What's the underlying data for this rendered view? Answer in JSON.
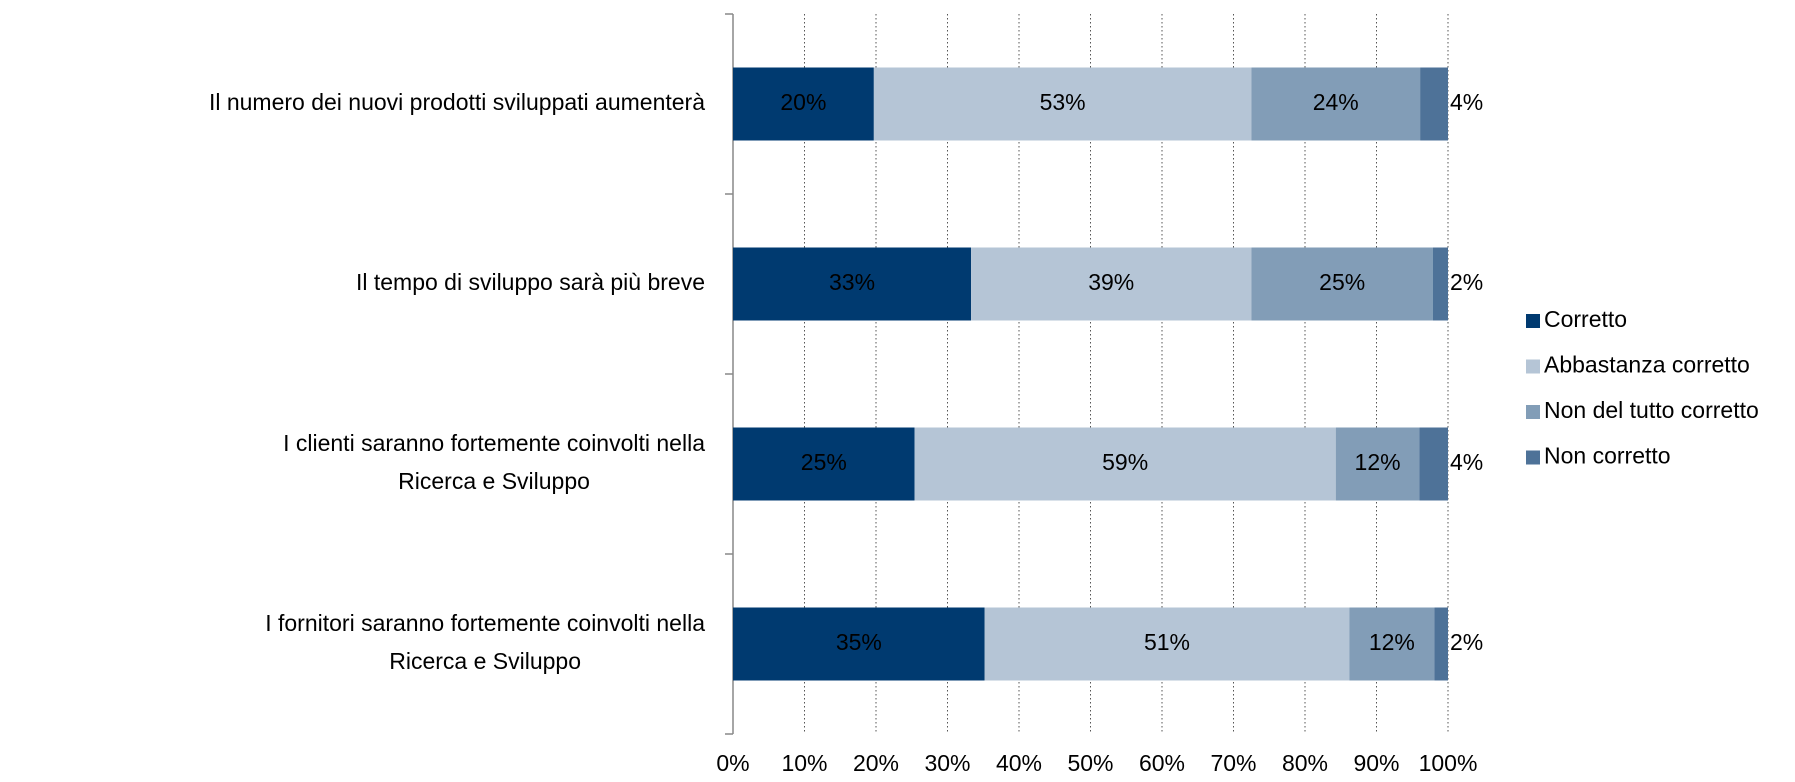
{
  "chart_data": {
    "type": "stacked_bar_horizontal",
    "categories": [
      "Il numero dei nuovi prodotti sviluppati aumenterà",
      "Il tempo di sviluppo sarà più breve",
      "I clienti saranno fortemente coinvolti nella\nRicerca e Sviluppo",
      "I fornitori saranno fortemente coinvolti nella\nRicerca e Sviluppo"
    ],
    "series": [
      {
        "name": "Corretto",
        "color": "#003a70",
        "values": [
          19.7,
          33.3,
          25.4,
          35.2
        ],
        "value_labels": [
          "20%",
          "33%",
          "25%",
          "35%"
        ]
      },
      {
        "name": "Abbastanza corretto",
        "color": "#b5c5d6",
        "values": [
          52.8,
          39.2,
          58.9,
          51.0
        ],
        "value_labels": [
          "53%",
          "39%",
          "59%",
          "51%"
        ]
      },
      {
        "name": "Non del tutto corretto",
        "color": "#829db7",
        "values": [
          23.6,
          25.4,
          11.7,
          11.9
        ],
        "value_labels": [
          "24%",
          "25%",
          "12%",
          "12%"
        ]
      },
      {
        "name": "Non corretto",
        "color": "#4e7298",
        "values": [
          3.9,
          2.1,
          4.0,
          1.9
        ],
        "value_labels": [
          "4%",
          "2%",
          "4%",
          "2%"
        ]
      }
    ],
    "xlim": [
      0,
      100
    ],
    "xticks": [
      {
        "value": 0,
        "label": "0%"
      },
      {
        "value": 10,
        "label": "10%"
      },
      {
        "value": 20,
        "label": "20%"
      },
      {
        "value": 30,
        "label": "30%"
      },
      {
        "value": 40,
        "label": "40%"
      },
      {
        "value": 50,
        "label": "50%"
      },
      {
        "value": 60,
        "label": "60%"
      },
      {
        "value": 70,
        "label": "70%"
      },
      {
        "value": 80,
        "label": "80%"
      },
      {
        "value": 90,
        "label": "90%"
      },
      {
        "value": 100,
        "label": "100%"
      }
    ],
    "grid": true,
    "legend": "right"
  }
}
